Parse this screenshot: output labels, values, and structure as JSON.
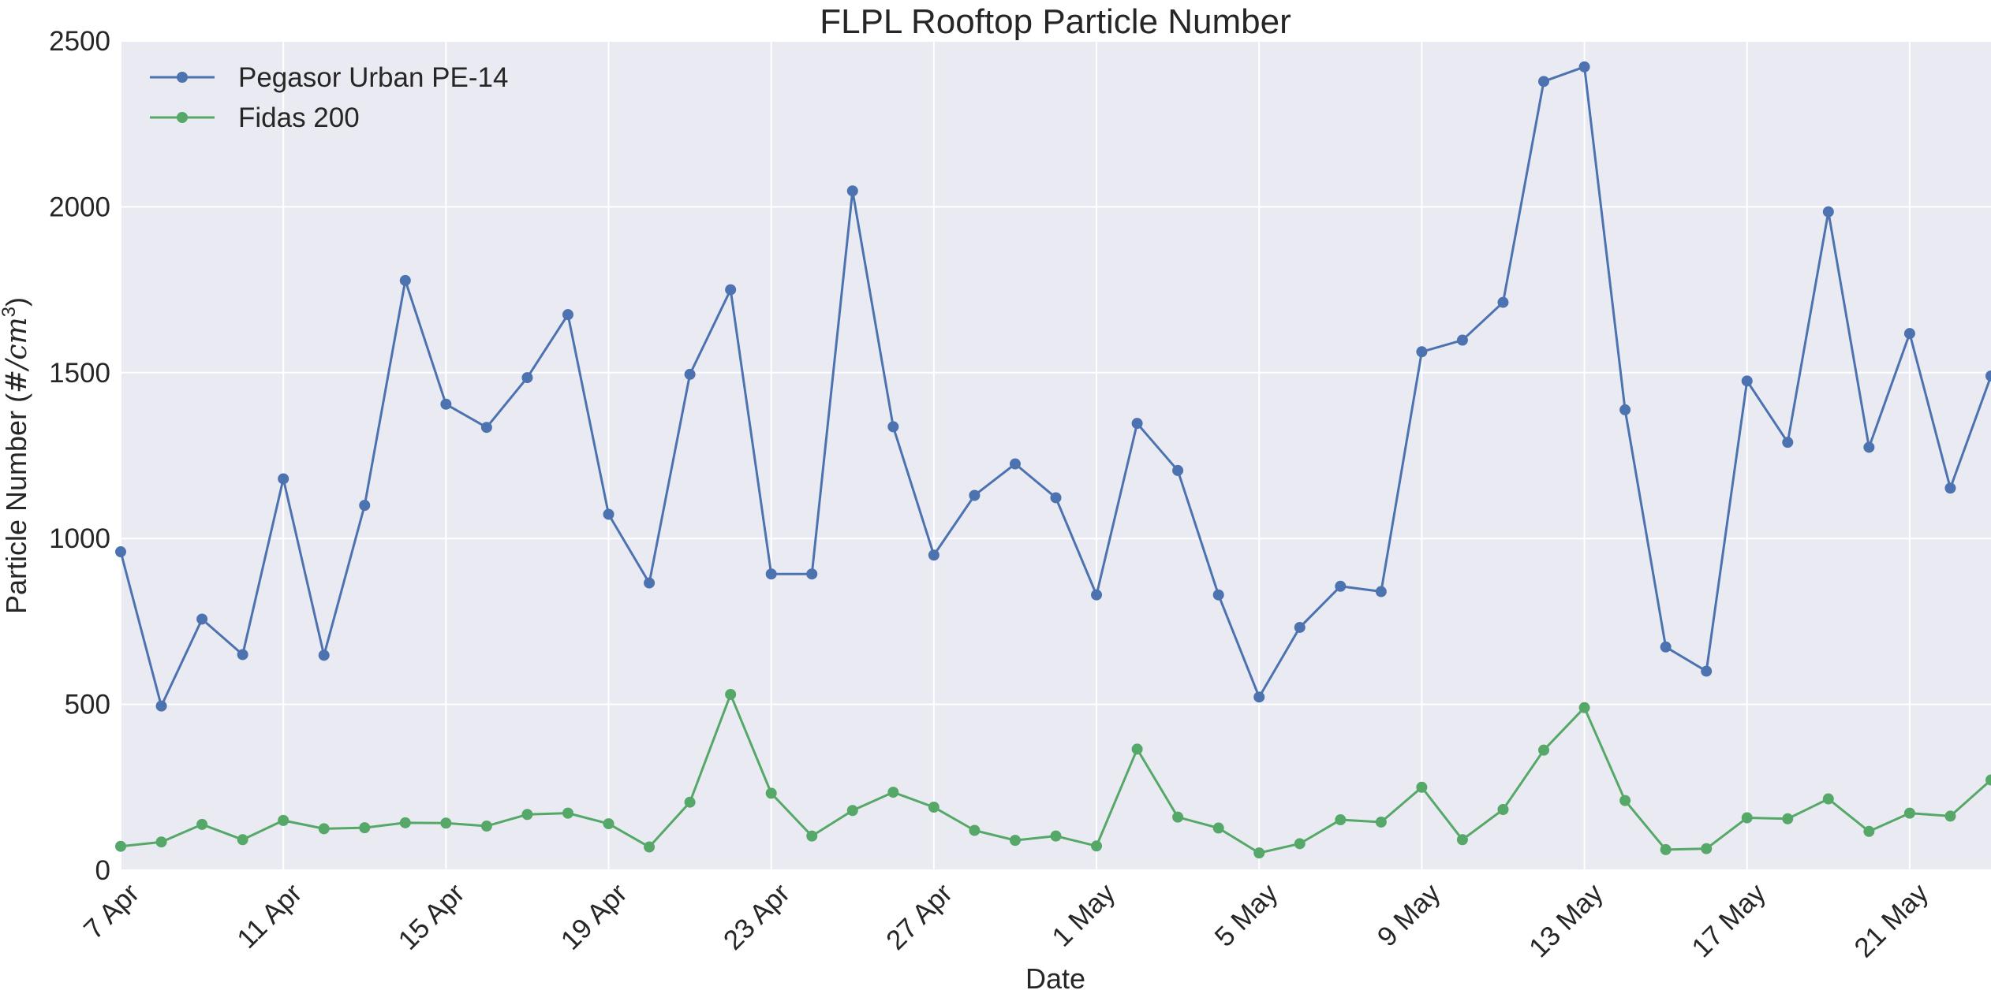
{
  "chart_data": {
    "type": "line",
    "title": "FLPL Rooftop Particle Number",
    "xlabel": "Date",
    "ylabel_text": "Particle Number (",
    "ylabel_math": "#/cm",
    "ylabel_sup": "3",
    "ylabel_close": ")",
    "ylim": [
      0,
      2500
    ],
    "yticks": [
      0,
      500,
      1000,
      1500,
      2000,
      2500
    ],
    "x_start": "7 Apr",
    "x_end": "23 May",
    "xticks": [
      {
        "label": "7 Apr",
        "day": 0
      },
      {
        "label": "11 Apr",
        "day": 4
      },
      {
        "label": "15 Apr",
        "day": 8
      },
      {
        "label": "19 Apr",
        "day": 12
      },
      {
        "label": "23 Apr",
        "day": 16
      },
      {
        "label": "27 Apr",
        "day": 20
      },
      {
        "label": "1 May",
        "day": 24
      },
      {
        "label": "5 May",
        "day": 28
      },
      {
        "label": "9 May",
        "day": 32
      },
      {
        "label": "13 May",
        "day": 36
      },
      {
        "label": "17 May",
        "day": 40
      },
      {
        "label": "21 May",
        "day": 44
      }
    ],
    "grid": true,
    "legend_position": "top-left",
    "series": [
      {
        "name": "Pegasor Urban PE-14",
        "color": "#4c72b0",
        "values": [
          960,
          495,
          757,
          650,
          1180,
          648,
          1100,
          1778,
          1405,
          1335,
          1485,
          1675,
          1073,
          866,
          1495,
          1750,
          893,
          893,
          2048,
          1337,
          950,
          1130,
          1225,
          1123,
          830,
          1347,
          1205,
          830,
          522,
          732,
          856,
          840,
          1563,
          1598,
          1712,
          2378,
          2422,
          1388,
          673,
          600,
          1475,
          1290,
          1985,
          1275,
          1618,
          1152,
          1490
        ]
      },
      {
        "name": "Fidas 200",
        "color": "#55a868",
        "values": [
          72,
          85,
          138,
          92,
          150,
          125,
          128,
          143,
          142,
          133,
          168,
          172,
          140,
          70,
          205,
          530,
          232,
          103,
          180,
          235,
          190,
          120,
          90,
          103,
          73,
          365,
          160,
          127,
          52,
          80,
          152,
          145,
          250,
          92,
          183,
          362,
          490,
          210,
          62,
          65,
          158,
          155,
          215,
          117,
          172,
          163,
          272
        ]
      }
    ]
  }
}
